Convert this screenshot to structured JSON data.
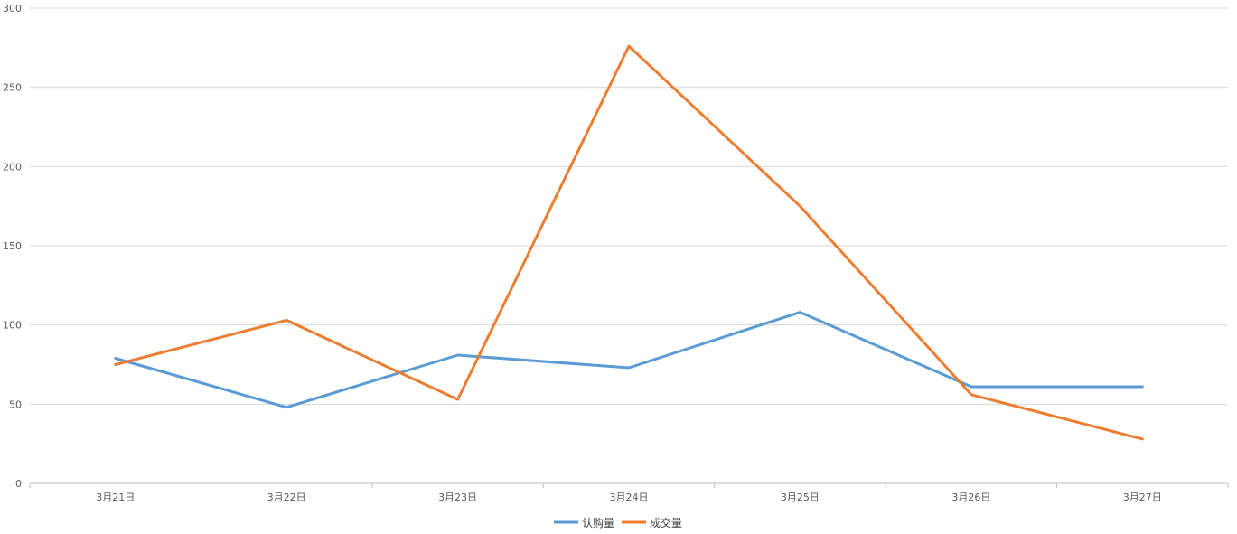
{
  "chart_data": {
    "type": "line",
    "title": "",
    "xlabel": "",
    "ylabel": "",
    "categories": [
      "3月21日",
      "3月22日",
      "3月23日",
      "3月24日",
      "3月25日",
      "3月26日",
      "3月27日"
    ],
    "ylim": [
      0,
      300
    ],
    "yticks": [
      0,
      50,
      100,
      150,
      200,
      250,
      300
    ],
    "grid": true,
    "legend_position": "bottom",
    "series": [
      {
        "name": "认购量",
        "color": "#5b9bd5",
        "values": [
          79,
          48,
          81,
          73,
          108,
          61,
          61
        ]
      },
      {
        "name": "成交量",
        "color": "#ed7d31",
        "values": [
          75,
          103,
          53,
          276,
          175,
          56,
          28
        ]
      }
    ]
  }
}
